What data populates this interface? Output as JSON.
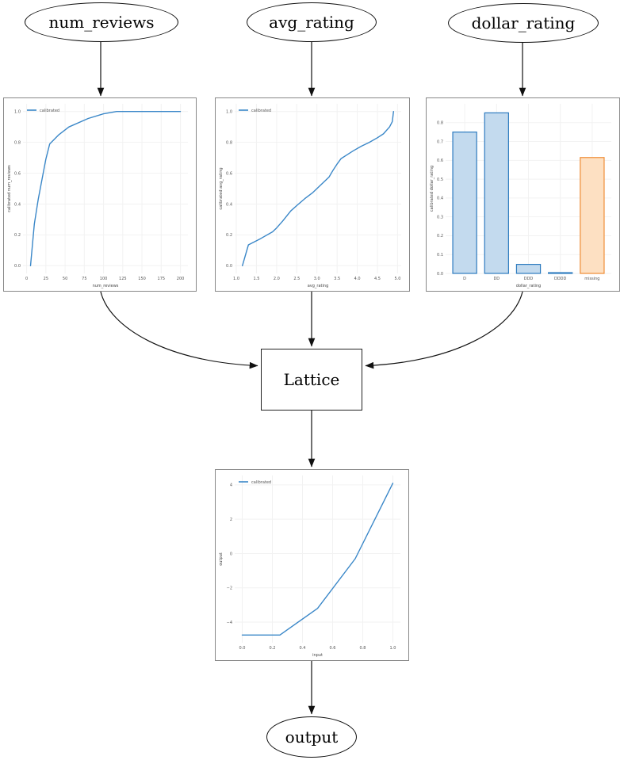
{
  "nodes": {
    "num_reviews": {
      "label": "num_reviews"
    },
    "avg_rating": {
      "label": "avg_rating"
    },
    "dollar_rating": {
      "label": "dollar_rating"
    },
    "lattice": {
      "label": "Lattice"
    },
    "output": {
      "label": "output"
    }
  },
  "colors": {
    "line_blue": "#3a87c8",
    "bar_blue_fill": "#c3daee",
    "bar_blue_edge": "#2d7bbf",
    "bar_orange_fill": "#fde0c2",
    "bar_orange_edge": "#ef8b33",
    "grid": "#f2f2f2",
    "tick_text": "#555555",
    "edge_black": "#111111"
  },
  "chart_data": [
    {
      "id": "num-reviews-calibrator",
      "type": "line",
      "legend": "calibrated",
      "xlabel": "num_reviews",
      "ylabel": "calibrated num_reviews",
      "line_color": "#3a87c8",
      "xlim": [
        -4.75,
        209.75
      ],
      "ylim": [
        -0.05,
        1.05
      ],
      "xticks": [
        0,
        25,
        50,
        75,
        100,
        125,
        150,
        175,
        200
      ],
      "xtick_labels": [
        "0",
        "25",
        "50",
        "75",
        "100",
        "125",
        "150",
        "175",
        "200"
      ],
      "yticks": [
        0,
        0.2,
        0.4,
        0.6,
        0.8,
        1.0
      ],
      "ytick_labels": [
        "0.0",
        "0.2",
        "0.4",
        "0.6",
        "0.8",
        "1.0"
      ],
      "x": [
        5,
        10,
        15,
        20,
        25,
        30,
        42,
        55,
        80,
        100,
        117,
        200
      ],
      "y": [
        0.0,
        0.27,
        0.43,
        0.56,
        0.69,
        0.79,
        0.85,
        0.9,
        0.955,
        0.985,
        1.0,
        1.0
      ]
    },
    {
      "id": "avg-rating-calibrator",
      "type": "line",
      "legend": "calibrated",
      "xlabel": "avg_rating",
      "ylabel": "calibrated avg_rating",
      "line_color": "#3a87c8",
      "xlim": [
        0.96,
        5.09
      ],
      "ylim": [
        -0.05,
        1.05
      ],
      "xticks": [
        1.0,
        1.5,
        2.0,
        2.5,
        3.0,
        3.5,
        4.0,
        4.5,
        5.0
      ],
      "xtick_labels": [
        "1.0",
        "1.5",
        "2.0",
        "2.5",
        "3.0",
        "3.5",
        "4.0",
        "4.5",
        "5.0"
      ],
      "yticks": [
        0,
        0.2,
        0.4,
        0.6,
        0.8,
        1.0
      ],
      "ytick_labels": [
        "0.0",
        "0.2",
        "0.4",
        "0.6",
        "0.8",
        "1.0"
      ],
      "x": [
        1.15,
        1.3,
        1.6,
        1.9,
        2.0,
        2.15,
        2.35,
        2.5,
        2.7,
        2.9,
        3.1,
        3.3,
        3.4,
        3.5,
        3.6,
        3.75,
        3.9,
        4.1,
        4.3,
        4.5,
        4.65,
        4.8,
        4.87,
        4.9
      ],
      "y": [
        0.0,
        0.135,
        0.175,
        0.22,
        0.245,
        0.29,
        0.355,
        0.39,
        0.435,
        0.475,
        0.525,
        0.575,
        0.62,
        0.66,
        0.695,
        0.72,
        0.745,
        0.775,
        0.8,
        0.83,
        0.855,
        0.9,
        0.935,
        1.0
      ]
    },
    {
      "id": "dollar-rating-calibrator",
      "type": "bar",
      "xlabel": "dollar_rating",
      "ylabel": "calibrated dollar_rating",
      "categories": [
        "D",
        "DD",
        "DDD",
        "DDDD",
        "missing"
      ],
      "values": [
        0.75,
        0.852,
        0.048,
        0.004,
        0.615
      ],
      "bar_fills": [
        "#c3daee",
        "#c3daee",
        "#c3daee",
        "#c3daee",
        "#fde0c2"
      ],
      "bar_edges": [
        "#2d7bbf",
        "#2d7bbf",
        "#2d7bbf",
        "#2d7bbf",
        "#ef8b33"
      ],
      "bar_width": 0.75,
      "xlim": [
        -0.6,
        4.6
      ],
      "ylim": [
        0,
        0.9
      ],
      "yticks": [
        0,
        0.1,
        0.2,
        0.3,
        0.4,
        0.5,
        0.6,
        0.7,
        0.8
      ],
      "ytick_labels": [
        "0.0",
        "0.1",
        "0.2",
        "0.3",
        "0.4",
        "0.5",
        "0.6",
        "0.7",
        "0.8"
      ]
    },
    {
      "id": "lattice-output-calibrator",
      "type": "line",
      "legend": "calibrated",
      "xlabel": "input",
      "ylabel": "output",
      "line_color": "#3a87c8",
      "xlim": [
        -0.05,
        1.05
      ],
      "ylim": [
        -5.2,
        4.55
      ],
      "xticks": [
        0,
        0.2,
        0.4,
        0.6,
        0.8,
        1.0
      ],
      "xtick_labels": [
        "0.0",
        "0.2",
        "0.4",
        "0.6",
        "0.8",
        "1.0"
      ],
      "yticks": [
        -4,
        -2,
        0,
        2,
        4
      ],
      "ytick_labels": [
        "−4",
        "−2",
        "0",
        "2",
        "4"
      ],
      "x": [
        0,
        0.25,
        0.5,
        0.75,
        1.0
      ],
      "y": [
        -4.75,
        -4.75,
        -3.2,
        -0.3,
        4.1
      ]
    }
  ]
}
